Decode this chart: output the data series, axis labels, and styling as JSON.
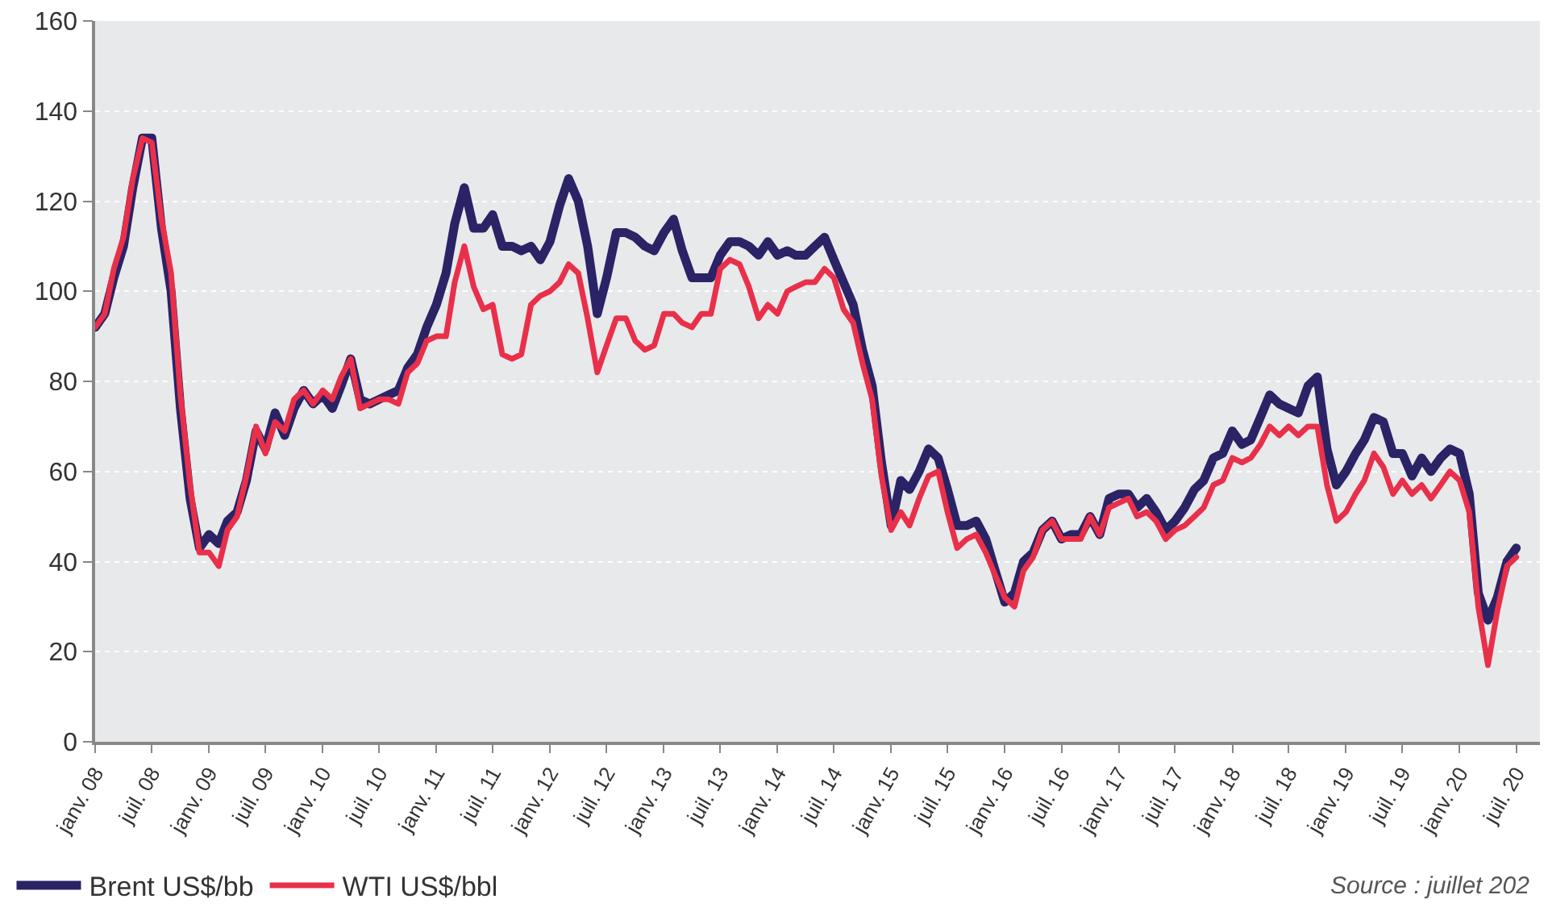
{
  "chart_data": {
    "type": "line",
    "x": [
      "2008-01",
      "2008-02",
      "2008-03",
      "2008-04",
      "2008-05",
      "2008-06",
      "2008-07",
      "2008-08",
      "2008-09",
      "2008-10",
      "2008-11",
      "2008-12",
      "2009-01",
      "2009-02",
      "2009-03",
      "2009-04",
      "2009-05",
      "2009-06",
      "2009-07",
      "2009-08",
      "2009-09",
      "2009-10",
      "2009-11",
      "2009-12",
      "2010-01",
      "2010-02",
      "2010-03",
      "2010-04",
      "2010-05",
      "2010-06",
      "2010-07",
      "2010-08",
      "2010-09",
      "2010-10",
      "2010-11",
      "2010-12",
      "2011-01",
      "2011-02",
      "2011-03",
      "2011-04",
      "2011-05",
      "2011-06",
      "2011-07",
      "2011-08",
      "2011-09",
      "2011-10",
      "2011-11",
      "2011-12",
      "2012-01",
      "2012-02",
      "2012-03",
      "2012-04",
      "2012-05",
      "2012-06",
      "2012-07",
      "2012-08",
      "2012-09",
      "2012-10",
      "2012-11",
      "2012-12",
      "2013-01",
      "2013-02",
      "2013-03",
      "2013-04",
      "2013-05",
      "2013-06",
      "2013-07",
      "2013-08",
      "2013-09",
      "2013-10",
      "2013-11",
      "2013-12",
      "2014-01",
      "2014-02",
      "2014-03",
      "2014-04",
      "2014-05",
      "2014-06",
      "2014-07",
      "2014-08",
      "2014-09",
      "2014-10",
      "2014-11",
      "2014-12",
      "2015-01",
      "2015-02",
      "2015-03",
      "2015-04",
      "2015-05",
      "2015-06",
      "2015-07",
      "2015-08",
      "2015-09",
      "2015-10",
      "2015-11",
      "2015-12",
      "2016-01",
      "2016-02",
      "2016-03",
      "2016-04",
      "2016-05",
      "2016-06",
      "2016-07",
      "2016-08",
      "2016-09",
      "2016-10",
      "2016-11",
      "2016-12",
      "2017-01",
      "2017-02",
      "2017-03",
      "2017-04",
      "2017-05",
      "2017-06",
      "2017-07",
      "2017-08",
      "2017-09",
      "2017-10",
      "2017-11",
      "2017-12",
      "2018-01",
      "2018-02",
      "2018-03",
      "2018-04",
      "2018-05",
      "2018-06",
      "2018-07",
      "2018-08",
      "2018-09",
      "2018-10",
      "2018-11",
      "2018-12",
      "2019-01",
      "2019-02",
      "2019-03",
      "2019-04",
      "2019-05",
      "2019-06",
      "2019-07",
      "2019-08",
      "2019-09",
      "2019-10",
      "2019-11",
      "2019-12",
      "2020-01",
      "2020-02",
      "2020-03",
      "2020-04",
      "2020-05",
      "2020-06",
      "2020-07"
    ],
    "series": [
      {
        "name": "Brent US$/bb",
        "color": "#2a2366",
        "values": [
          92,
          95,
          103,
          110,
          123,
          134,
          134,
          114,
          100,
          74,
          54,
          43,
          46,
          44,
          49,
          51,
          58,
          69,
          65,
          73,
          68,
          74,
          78,
          75,
          77,
          74,
          79,
          85,
          76,
          75,
          76,
          77,
          78,
          83,
          86,
          92,
          97,
          104,
          115,
          123,
          114,
          114,
          117,
          110,
          110,
          109,
          110,
          107,
          111,
          119,
          125,
          120,
          110,
          95,
          103,
          113,
          113,
          112,
          110,
          109,
          113,
          116,
          109,
          103,
          103,
          103,
          108,
          111,
          111,
          110,
          108,
          111,
          108,
          109,
          108,
          108,
          110,
          112,
          107,
          102,
          97,
          87,
          79,
          62,
          48,
          58,
          56,
          60,
          65,
          63,
          56,
          48,
          48,
          49,
          45,
          38,
          31,
          33,
          40,
          42,
          47,
          49,
          45,
          46,
          46,
          50,
          46,
          54,
          55,
          55,
          52,
          54,
          51,
          47,
          49,
          52,
          56,
          58,
          63,
          64,
          69,
          66,
          67,
          72,
          77,
          75,
          74,
          73,
          79,
          81,
          65,
          57,
          60,
          64,
          67,
          72,
          71,
          64,
          64,
          59,
          63,
          60,
          63,
          65,
          64,
          55,
          33,
          27,
          32,
          40,
          43
        ]
      },
      {
        "name": "WTI US$/bbl",
        "color": "#e8304a",
        "values": [
          92,
          95,
          105,
          112,
          125,
          134,
          133,
          116,
          104,
          77,
          57,
          42,
          42,
          39,
          47,
          50,
          59,
          70,
          64,
          71,
          69,
          76,
          78,
          75,
          78,
          76,
          81,
          85,
          74,
          75,
          76,
          76,
          75,
          82,
          84,
          89,
          90,
          90,
          102,
          110,
          101,
          96,
          97,
          86,
          85,
          86,
          97,
          99,
          100,
          102,
          106,
          104,
          94,
          82,
          88,
          94,
          94,
          89,
          87,
          88,
          95,
          95,
          93,
          92,
          95,
          95,
          105,
          107,
          106,
          101,
          94,
          97,
          95,
          100,
          101,
          102,
          102,
          105,
          103,
          96,
          93,
          84,
          76,
          59,
          47,
          51,
          48,
          54,
          59,
          60,
          51,
          43,
          45,
          46,
          42,
          37,
          32,
          30,
          38,
          41,
          47,
          49,
          45,
          45,
          45,
          50,
          46,
          52,
          53,
          54,
          50,
          51,
          49,
          45,
          47,
          48,
          50,
          52,
          57,
          58,
          63,
          62,
          63,
          66,
          70,
          68,
          70,
          68,
          70,
          70,
          57,
          49,
          51,
          55,
          58,
          64,
          61,
          55,
          58,
          55,
          57,
          54,
          57,
          60,
          58,
          51,
          30,
          17,
          29,
          39,
          41
        ]
      }
    ],
    "xlim": [
      "2008-01",
      "2020-09-15"
    ],
    "xticks": [
      {
        "value": "2008-01",
        "label": "janv. 08"
      },
      {
        "value": "2008-07",
        "label": "juil. 08"
      },
      {
        "value": "2009-01",
        "label": "janv. 09"
      },
      {
        "value": "2009-07",
        "label": "juil. 09"
      },
      {
        "value": "2010-01",
        "label": "janv. 10"
      },
      {
        "value": "2010-07",
        "label": "juil. 10"
      },
      {
        "value": "2011-01",
        "label": "janv. 11"
      },
      {
        "value": "2011-07",
        "label": "juil. 11"
      },
      {
        "value": "2012-01",
        "label": "janv. 12"
      },
      {
        "value": "2012-07",
        "label": "juil. 12"
      },
      {
        "value": "2013-01",
        "label": "janv. 13"
      },
      {
        "value": "2013-07",
        "label": "juil. 13"
      },
      {
        "value": "2014-01",
        "label": "janv. 14"
      },
      {
        "value": "2014-07",
        "label": "juil. 14"
      },
      {
        "value": "2015-01",
        "label": "janv. 15"
      },
      {
        "value": "2015-07",
        "label": "juil. 15"
      },
      {
        "value": "2016-01",
        "label": "janv. 16"
      },
      {
        "value": "2016-07",
        "label": "juil. 16"
      },
      {
        "value": "2017-01",
        "label": "janv. 17"
      },
      {
        "value": "2017-07",
        "label": "juil. 17"
      },
      {
        "value": "2018-01",
        "label": "janv. 18"
      },
      {
        "value": "2018-07",
        "label": "juil. 18"
      },
      {
        "value": "2019-01",
        "label": "janv. 19"
      },
      {
        "value": "2019-07",
        "label": "juil. 19"
      },
      {
        "value": "2020-01",
        "label": "janv. 20"
      },
      {
        "value": "2020-07",
        "label": "juil. 20"
      }
    ],
    "ylim": [
      0,
      160
    ],
    "yticks": [
      0,
      20,
      40,
      60,
      80,
      100,
      120,
      140,
      160
    ],
    "grid": "y",
    "legend": "bottom left",
    "line_style": "solid",
    "marker": "none",
    "annotations": [
      "Source : juillet 202"
    ]
  }
}
